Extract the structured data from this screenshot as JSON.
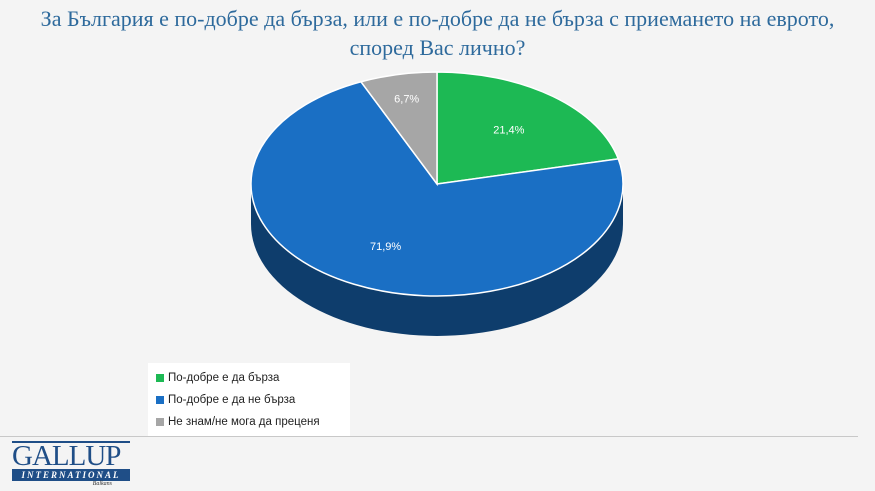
{
  "chart_data": {
    "type": "pie",
    "title": "За България е по-добре да бърза, или е по-добре да не бърза с приемането на еврото, според Вас лично?",
    "title_line1": "За България е по-добре да бърза, или е по-добре да не бърза с приемането на еврото,",
    "title_line2": "според Вас лично?",
    "legend_position": "bottom-left",
    "slices": [
      {
        "label": "По-добре е да бърза",
        "value": 21.4,
        "data_label": "21,4%",
        "color": "#1db954"
      },
      {
        "label": "По-добре е да не бърза",
        "value": 71.9,
        "data_label": "71,9%",
        "color": "#1a6fc4"
      },
      {
        "label": "Не знам/не мога да преценя",
        "value": 6.7,
        "data_label": "6,7%",
        "color": "#a6a6a6"
      }
    ]
  },
  "logo": {
    "name": "GALLUP",
    "sub": "INTERNATIONAL",
    "region": "Balkans"
  }
}
